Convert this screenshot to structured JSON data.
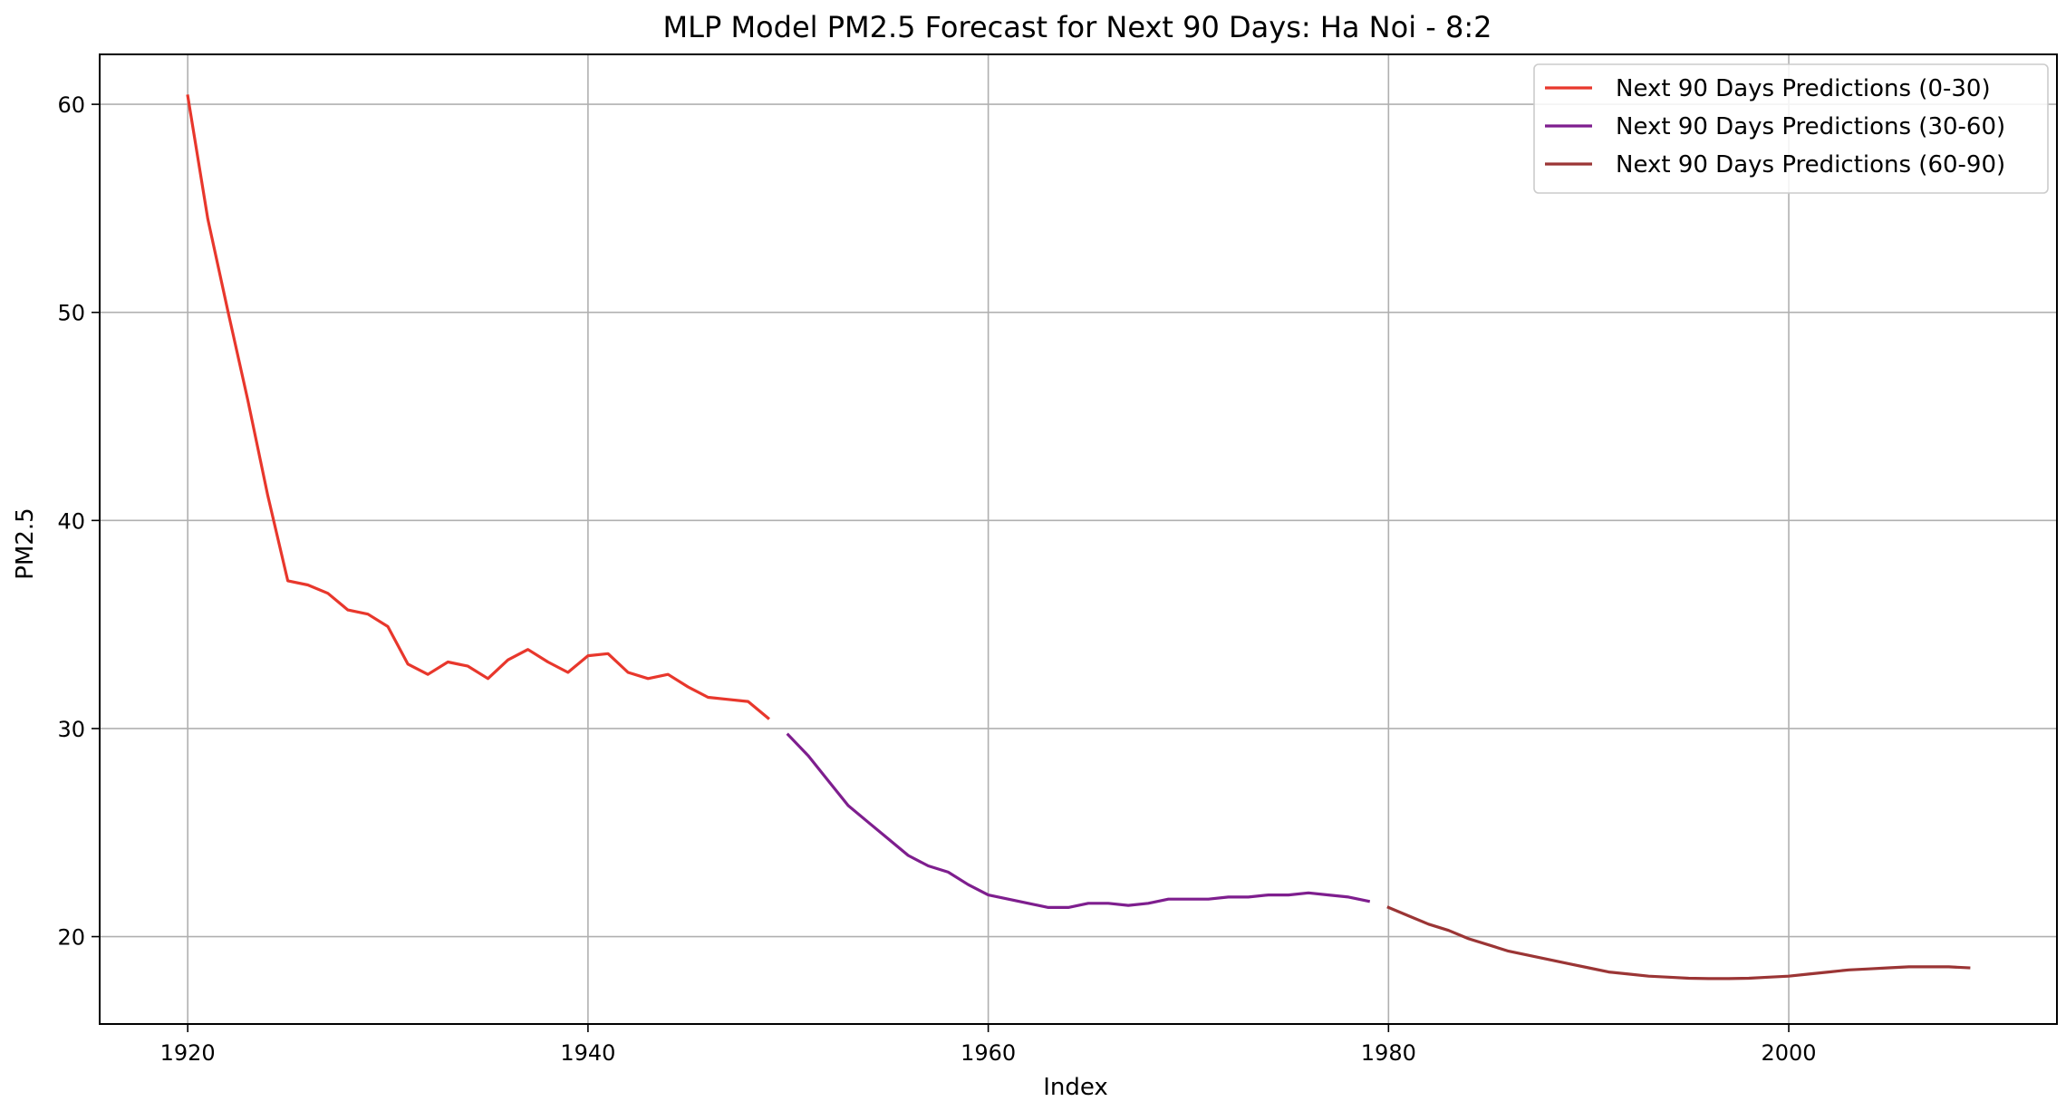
{
  "chart_data": {
    "type": "line",
    "title": "MLP Model PM2.5 Forecast for Next 90 Days: Ha Noi - 8:2",
    "xlabel": "Index",
    "ylabel": "PM2.5",
    "xlim": [
      1915.6,
      2013.4
    ],
    "ylim": [
      15.8,
      62.4
    ],
    "xticks": [
      1920,
      1940,
      1960,
      1980,
      2000
    ],
    "yticks": [
      20,
      30,
      40,
      50,
      60
    ],
    "grid": true,
    "legend_position": "top-right",
    "series": [
      {
        "name": "Next 90 Days Predictions (0-30)",
        "color": "#e8372c",
        "x": [
          1920,
          1921,
          1922,
          1923,
          1924,
          1925,
          1926,
          1927,
          1928,
          1929,
          1930,
          1931,
          1932,
          1933,
          1934,
          1935,
          1936,
          1937,
          1938,
          1939,
          1940,
          1941,
          1942,
          1943,
          1944,
          1945,
          1946,
          1947,
          1948,
          1949
        ],
        "y": [
          60.4,
          54.5,
          50.1,
          45.8,
          41.2,
          37.1,
          36.9,
          36.5,
          35.7,
          35.5,
          34.9,
          33.1,
          32.6,
          33.2,
          33.0,
          32.4,
          33.3,
          33.8,
          33.2,
          32.7,
          33.5,
          33.6,
          32.7,
          32.4,
          32.6,
          32.0,
          31.5,
          31.4,
          31.3,
          30.5
        ]
      },
      {
        "name": "Next 90 Days Predictions (30-60)",
        "color": "#7e1e8e",
        "x": [
          1950,
          1951,
          1952,
          1953,
          1954,
          1955,
          1956,
          1957,
          1958,
          1959,
          1960,
          1961,
          1962,
          1963,
          1964,
          1965,
          1966,
          1967,
          1968,
          1969,
          1970,
          1971,
          1972,
          1973,
          1974,
          1975,
          1976,
          1977,
          1978,
          1979
        ],
        "y": [
          29.7,
          28.7,
          27.5,
          26.3,
          25.5,
          24.7,
          23.9,
          23.4,
          23.1,
          22.5,
          22.0,
          21.8,
          21.6,
          21.4,
          21.4,
          21.6,
          21.6,
          21.5,
          21.6,
          21.8,
          21.8,
          21.8,
          21.9,
          21.9,
          22.0,
          22.0,
          22.1,
          22.0,
          21.9,
          21.7
        ]
      },
      {
        "name": "Next 90 Days Predictions (60-90)",
        "color": "#9b3535",
        "x": [
          1980,
          1981,
          1982,
          1983,
          1984,
          1985,
          1986,
          1987,
          1988,
          1989,
          1990,
          1991,
          1992,
          1993,
          1994,
          1995,
          1996,
          1997,
          1998,
          1999,
          2000,
          2001,
          2002,
          2003,
          2004,
          2005,
          2006,
          2007,
          2008,
          2009
        ],
        "y": [
          21.4,
          21.0,
          20.6,
          20.3,
          19.9,
          19.6,
          19.3,
          19.1,
          18.9,
          18.7,
          18.5,
          18.3,
          18.2,
          18.1,
          18.05,
          18.0,
          17.98,
          17.98,
          18.0,
          18.05,
          18.1,
          18.2,
          18.3,
          18.4,
          18.45,
          18.5,
          18.55,
          18.55,
          18.55,
          18.5
        ]
      }
    ]
  }
}
